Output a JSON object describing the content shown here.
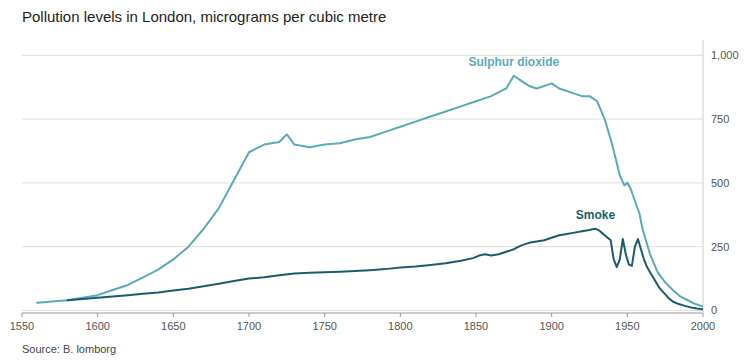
{
  "chart_data": {
    "type": "line",
    "title": "Pollution levels in London, micrograms per cubic metre",
    "source": "Source: B. lomborg",
    "xlim": [
      1550,
      2000
    ],
    "ylim": [
      -10,
      1060
    ],
    "xticks": [
      1550,
      1600,
      1650,
      1700,
      1750,
      1800,
      1850,
      1900,
      1950,
      2000
    ],
    "yticks": [
      0,
      250,
      500,
      750,
      {
        "value": 1000,
        "label": "1,000"
      }
    ],
    "grid": true,
    "series": [
      {
        "name": "Sulphur dioxide",
        "color": "#5aabb8",
        "x": [
          1560,
          1580,
          1590,
          1600,
          1610,
          1620,
          1630,
          1640,
          1650,
          1660,
          1670,
          1680,
          1690,
          1700,
          1710,
          1720,
          1725,
          1730,
          1740,
          1750,
          1760,
          1770,
          1780,
          1790,
          1800,
          1810,
          1820,
          1830,
          1840,
          1850,
          1860,
          1870,
          1875,
          1880,
          1885,
          1890,
          1895,
          1900,
          1905,
          1910,
          1915,
          1920,
          1925,
          1930,
          1935,
          1940,
          1945,
          1948,
          1950,
          1952,
          1955,
          1958,
          1960,
          1965,
          1970,
          1975,
          1980,
          1985,
          1990,
          1995,
          2000
        ],
        "values": [
          30,
          40,
          50,
          60,
          80,
          100,
          130,
          160,
          200,
          250,
          320,
          400,
          510,
          620,
          650,
          660,
          690,
          650,
          640,
          650,
          655,
          670,
          680,
          700,
          720,
          740,
          760,
          780,
          800,
          820,
          840,
          870,
          920,
          900,
          880,
          870,
          880,
          890,
          870,
          860,
          850,
          840,
          840,
          820,
          750,
          650,
          530,
          490,
          500,
          480,
          430,
          380,
          320,
          220,
          150,
          110,
          80,
          55,
          40,
          25,
          15
        ]
      },
      {
        "name": "Smoke",
        "color": "#1b5c6b",
        "x": [
          1580,
          1590,
          1600,
          1610,
          1620,
          1630,
          1640,
          1650,
          1660,
          1670,
          1680,
          1690,
          1700,
          1710,
          1720,
          1730,
          1740,
          1750,
          1760,
          1770,
          1780,
          1790,
          1800,
          1810,
          1820,
          1830,
          1840,
          1848,
          1852,
          1856,
          1860,
          1865,
          1870,
          1875,
          1880,
          1885,
          1890,
          1895,
          1900,
          1905,
          1910,
          1915,
          1920,
          1925,
          1927,
          1929,
          1931,
          1933,
          1935,
          1937,
          1939,
          1941,
          1943,
          1945,
          1947,
          1949,
          1951,
          1953,
          1955,
          1957,
          1959,
          1961,
          1963,
          1965,
          1968,
          1971,
          1974,
          1977,
          1980,
          1984,
          1988,
          1992,
          1996,
          2000
        ],
        "values": [
          40,
          45,
          50,
          55,
          60,
          65,
          70,
          78,
          85,
          95,
          105,
          115,
          125,
          130,
          138,
          145,
          148,
          150,
          152,
          155,
          158,
          162,
          168,
          172,
          178,
          185,
          195,
          205,
          215,
          220,
          215,
          220,
          230,
          240,
          255,
          265,
          270,
          275,
          285,
          295,
          300,
          305,
          310,
          315,
          318,
          320,
          315,
          305,
          295,
          285,
          275,
          200,
          170,
          200,
          280,
          220,
          180,
          175,
          250,
          280,
          240,
          200,
          170,
          150,
          120,
          90,
          70,
          50,
          35,
          25,
          18,
          12,
          8,
          5
        ]
      }
    ]
  }
}
